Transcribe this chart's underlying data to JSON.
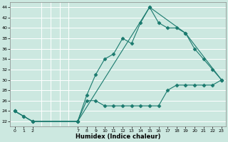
{
  "xlabel": "Humidex (Indice chaleur)",
  "background_color": "#cce8e0",
  "grid_color": "#ffffff",
  "line_color": "#1a7a6e",
  "ylim": [
    21,
    45
  ],
  "yticks": [
    22,
    24,
    26,
    28,
    30,
    32,
    34,
    36,
    38,
    40,
    42,
    44
  ],
  "xlim": [
    -0.5,
    23.5
  ],
  "xgrid_ticks": [
    0,
    1,
    2,
    3,
    4,
    5,
    6,
    7,
    8,
    9,
    10,
    11,
    12,
    13,
    14,
    15,
    16,
    17,
    18,
    19,
    20,
    21,
    22,
    23
  ],
  "xtick_labels_pos": [
    0,
    1,
    2,
    7,
    8,
    9,
    10,
    11,
    12,
    13,
    14,
    15,
    16,
    17,
    18,
    19,
    20,
    21,
    22,
    23
  ],
  "xtick_labels": [
    "0",
    "1",
    "2",
    "7",
    "8",
    "9",
    "10",
    "11",
    "12",
    "13",
    "14",
    "15",
    "16",
    "17",
    "18",
    "19",
    "20",
    "21",
    "22",
    "23"
  ],
  "line1_x": [
    0,
    1,
    2,
    7,
    8,
    9,
    10,
    11,
    12,
    13,
    14,
    15,
    16,
    17,
    18,
    19,
    20,
    21,
    22,
    23
  ],
  "line1_y": [
    24,
    23,
    22,
    22,
    27,
    31,
    34,
    35,
    38,
    37,
    41,
    44,
    41,
    40,
    40,
    39,
    36,
    34,
    32,
    30
  ],
  "line2_x": [
    0,
    1,
    2,
    7,
    8,
    9,
    10,
    11,
    12,
    13,
    14,
    15,
    16,
    17,
    18,
    19,
    20,
    21,
    22,
    23
  ],
  "line2_y": [
    24,
    23,
    22,
    22,
    26,
    26,
    25,
    25,
    25,
    25,
    25,
    25,
    25,
    28,
    29,
    29,
    29,
    29,
    29,
    30
  ],
  "line3_x": [
    0,
    2,
    7,
    15,
    19,
    23
  ],
  "line3_y": [
    24,
    22,
    22,
    44,
    39,
    30
  ],
  "marker_size": 2.5,
  "linewidth": 0.8
}
